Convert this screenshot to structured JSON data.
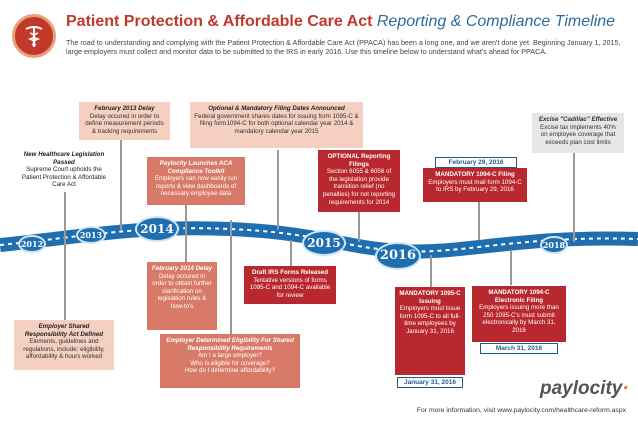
{
  "header": {
    "title_main": "Patient Protection & Affordable Care Act",
    "title_sub": "Reporting & Compliance Timeline",
    "intro": "The road to understanding and complying with the Patient Protection & Affordable Care Act (PPACA) has been a long one, and we aren't done yet. Beginning January 1, 2015, large employers must collect and monitor data to be submitted to the IRS in early 2016. Use this timeline below to understand what's ahead for PPACA."
  },
  "timeline": {
    "years": [
      "2012",
      "2013",
      "2014",
      "2015",
      "2016",
      "2018"
    ]
  },
  "events": {
    "feb2013": {
      "heading": "February 2013 Delay",
      "text": "Delay occured in order to define measurement periods & tracking requirements"
    },
    "healthcare_law": {
      "heading": "New Healthcare Legislation Passed",
      "text": "Supreme Court upholds the Patient Protection & Affordable Care Act"
    },
    "optional_mandatory": {
      "heading": "Optional & Mandatory Filing Dates Announced",
      "text": "Federal government shares dates for issuing form 1095-C & filing form1094-C for both optional calendar year 2014 & mandatory calendar year 2015"
    },
    "aca_toolkit": {
      "heading": "Paylocity Launches ACA Compliance Toolkit",
      "text": "Employers can now easily run reports & view dashboards of necessary employee data"
    },
    "optional_reporting": {
      "heading": "OPTIONAL Reporting Filings",
      "text": "Section 6055 & 6056 of the legislation provide transition relief (no penalties) for not reporting requirements for 2014"
    },
    "feb29_2016": {
      "date": "February 29, 2016",
      "heading": "MANDATORY 1094-C Filing",
      "text": "Employers must mail form 1094-C to IRS by February 29, 2016"
    },
    "cadillac": {
      "heading": "Excise \"Cadillac\" Effective",
      "text": "Excise tax implements 40% on employee coverage that exceeds plan cost limits"
    },
    "feb2014": {
      "heading": "February 2014 Delay",
      "text": "Delay occured in order to obtain further clarification on legislation rules & how-to's"
    },
    "draft_irs": {
      "heading": "Draft IRS Forms Released",
      "text": "Tentative versions of forms 1095-C and 1094-C available for review"
    },
    "mandatory_1095": {
      "heading": "MANDATORY 1095-C Issuing",
      "text": "Employers must issue form 1095-C to all full-time employees by January 31, 2016",
      "date": "January 31, 2016"
    },
    "mandatory_electronic": {
      "heading": "MANDATORY 1094-C Electronic Filing",
      "text": "Employers issuing more than 250 1095-C's must submit electronically by March 31, 2016",
      "date": "March 31, 2016"
    },
    "shared_resp": {
      "heading": "Employer Shared Responsibility Act Defined",
      "text": "Elements, guidelines and regulations, include: eligibility, affordability & hours worked"
    },
    "eligibility": {
      "heading": "Employer Determined Eligibility For Shared Responsibility Requirements",
      "q1": "Am I a large employer?",
      "q2": "Who is eligible for coverage?",
      "q3": "How do I determine affordability?"
    }
  },
  "footer": {
    "brand": "paylocity",
    "more_info": "For more information, visit www.paylocity.com/healthcare-reform.aspx"
  },
  "colors": {
    "red": "#b8282e",
    "blue": "#1f6fb0",
    "peach": "#f5cfc0",
    "salmon": "#d97a69"
  },
  "icons": [
    "caduceus-icon"
  ]
}
